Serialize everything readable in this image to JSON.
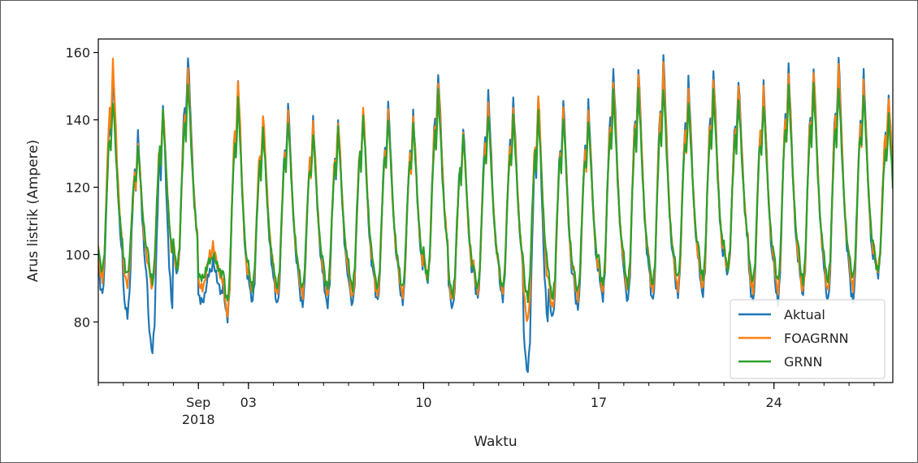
{
  "chart_data": {
    "type": "line",
    "title": "",
    "xlabel": "Waktu",
    "ylabel": "Arus listrik (Ampere)",
    "xlim": [
      "2018-08-28",
      "2018-09-28"
    ],
    "ylim": [
      62,
      164
    ],
    "x_ticks": [
      {
        "date": "2018-09-01",
        "label": "Sep",
        "sublabel": "2018"
      },
      {
        "date": "2018-09-03",
        "label": "03"
      },
      {
        "date": "2018-09-10",
        "label": "10"
      },
      {
        "date": "2018-09-17",
        "label": "17"
      },
      {
        "date": "2018-09-24",
        "label": "24"
      }
    ],
    "y_ticks": [
      80,
      100,
      120,
      140,
      160
    ],
    "legend": {
      "position": "lower-right",
      "entries": [
        "Aktual",
        "FOAGRNN",
        "GRNN"
      ]
    },
    "colors": {
      "Aktual": "#1f77b4",
      "FOAGRNN": "#ff7f0e",
      "GRNN": "#2ca02c"
    },
    "daily_peaks": {
      "dates": [
        "2018-08-28",
        "2018-08-29",
        "2018-08-30",
        "2018-08-31",
        "2018-09-01",
        "2018-09-02",
        "2018-09-03",
        "2018-09-04",
        "2018-09-05",
        "2018-09-06",
        "2018-09-07",
        "2018-09-08",
        "2018-09-09",
        "2018-09-10",
        "2018-09-11",
        "2018-09-12",
        "2018-09-13",
        "2018-09-14",
        "2018-09-15",
        "2018-09-16",
        "2018-09-17",
        "2018-09-18",
        "2018-09-19",
        "2018-09-20",
        "2018-09-21",
        "2018-09-22",
        "2018-09-23",
        "2018-09-24",
        "2018-09-25",
        "2018-09-26",
        "2018-09-27",
        "2018-09-28"
      ],
      "Aktual": [
        154,
        136,
        145,
        159,
        98,
        151,
        140,
        145,
        140,
        140,
        143,
        145,
        142,
        154,
        138,
        148,
        146,
        148,
        146,
        145,
        155,
        156,
        159,
        152,
        155,
        152,
        151,
        156,
        156,
        159,
        154,
        147
      ],
      "FOAGRNN": [
        157,
        133,
        144,
        155,
        103,
        152,
        142,
        142,
        139,
        140,
        144,
        142,
        141,
        152,
        136,
        144,
        144,
        148,
        143,
        142,
        152,
        154,
        156,
        149,
        153,
        150,
        149,
        154,
        155,
        156,
        151,
        147
      ],
      "GRNN": [
        146,
        132,
        142,
        151,
        100,
        146,
        137,
        140,
        136,
        137,
        141,
        141,
        139,
        148,
        136,
        142,
        141,
        142,
        141,
        140,
        148,
        149,
        150,
        145,
        148,
        146,
        145,
        150,
        150,
        150,
        148,
        141
      ]
    },
    "daily_minima": {
      "dates": [
        "2018-08-28",
        "2018-08-29",
        "2018-08-30",
        "2018-08-31",
        "2018-09-01",
        "2018-09-02",
        "2018-09-03",
        "2018-09-04",
        "2018-09-05",
        "2018-09-06",
        "2018-09-07",
        "2018-09-08",
        "2018-09-09",
        "2018-09-10",
        "2018-09-11",
        "2018-09-12",
        "2018-09-13",
        "2018-09-14",
        "2018-09-15",
        "2018-09-16",
        "2018-09-17",
        "2018-09-18",
        "2018-09-19",
        "2018-09-20",
        "2018-09-21",
        "2018-09-22",
        "2018-09-23",
        "2018-09-24",
        "2018-09-25",
        "2018-09-26",
        "2018-09-27",
        "2018-09-28"
      ],
      "Aktual": [
        88,
        82,
        71,
        94,
        86,
        81,
        86,
        85,
        85,
        85,
        85,
        86,
        86,
        92,
        84,
        87,
        87,
        65,
        81,
        84,
        87,
        86,
        86,
        88,
        88,
        94,
        86,
        86,
        88,
        86,
        86,
        94
      ],
      "FOAGRNN": [
        92,
        91,
        90,
        95,
        90,
        82,
        89,
        88,
        88,
        88,
        87,
        88,
        88,
        93,
        86,
        89,
        89,
        80,
        84,
        87,
        89,
        89,
        89,
        90,
        90,
        95,
        89,
        89,
        89,
        89,
        90,
        95
      ],
      "GRNN": [
        95,
        94,
        92,
        96,
        93,
        86,
        90,
        90,
        90,
        90,
        90,
        90,
        90,
        93,
        88,
        90,
        90,
        87,
        87,
        89,
        91,
        91,
        91,
        93,
        93,
        96,
        92,
        92,
        92,
        92,
        93,
        95
      ]
    }
  }
}
